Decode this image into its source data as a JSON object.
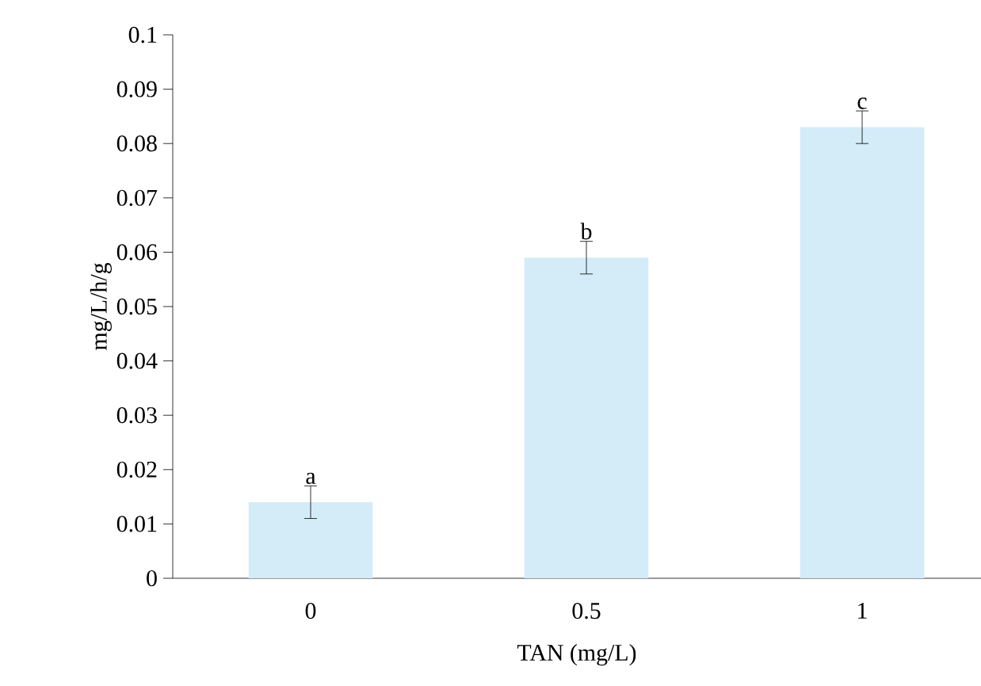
{
  "chart_data": {
    "type": "bar",
    "xlabel": "TAN (mg/L)",
    "ylabel": "mg/L/h/g",
    "categories": [
      "0",
      "0.5",
      "1"
    ],
    "values": [
      0.014,
      0.059,
      0.083
    ],
    "errors": [
      0.003,
      0.003,
      0.003
    ],
    "color": "#d4ebf8",
    "ylim": [
      0,
      0.1
    ],
    "yticks": [
      0,
      0.01,
      0.02,
      0.03,
      0.04,
      0.05,
      0.06,
      0.07,
      0.08,
      0.09,
      0.1
    ],
    "annotations": [
      {
        "text": "a",
        "x": "0",
        "y": 0.017
      },
      {
        "text": "b",
        "x": "0.5",
        "y": 0.062
      },
      {
        "text": "c",
        "x": "1",
        "y": 0.086
      }
    ]
  }
}
